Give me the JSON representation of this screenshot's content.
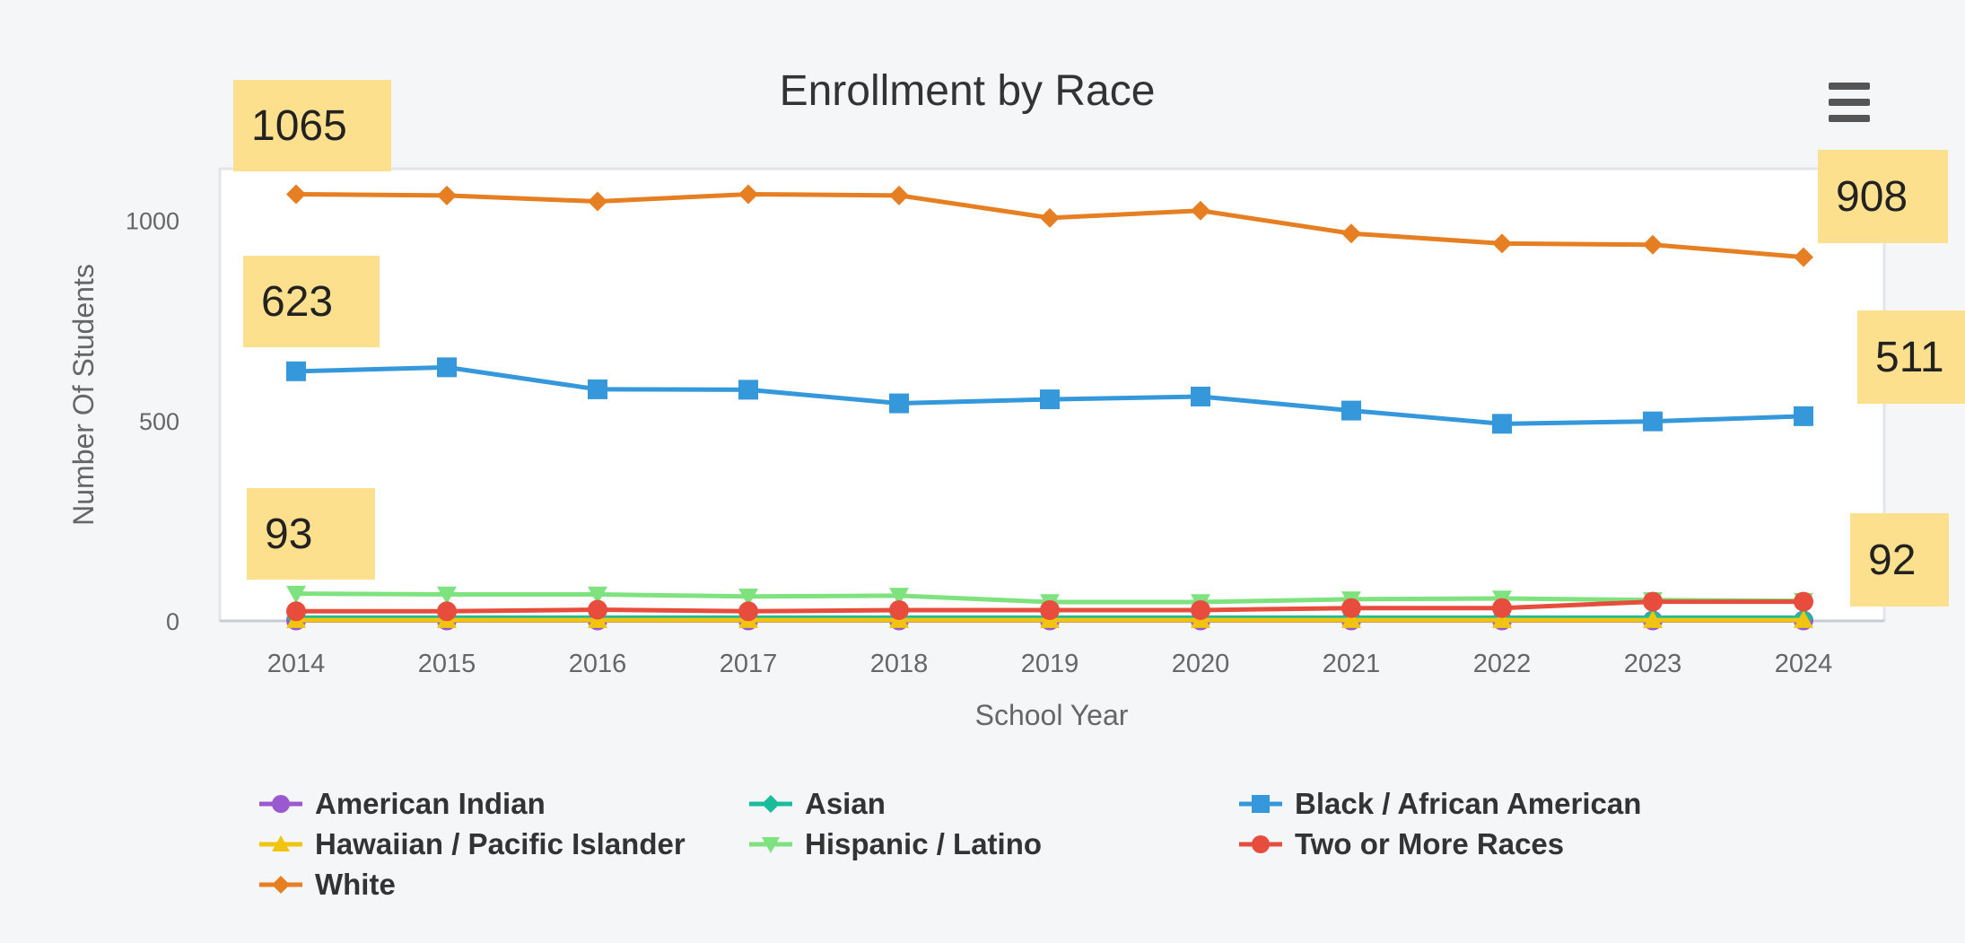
{
  "chart_data": {
    "type": "line",
    "title": "Enrollment by Race",
    "xlabel": "School Year",
    "ylabel": "Number Of Students",
    "x": [
      "2014",
      "2015",
      "2016",
      "2017",
      "2018",
      "2019",
      "2020",
      "2021",
      "2022",
      "2023",
      "2024"
    ],
    "ylim": [
      0,
      1120
    ],
    "yticks": [
      0,
      500,
      1000
    ],
    "grid": false,
    "legend": "bottom",
    "series": [
      {
        "name": "American Indian",
        "color": "#9b59d0",
        "marker": "circle",
        "values": [
          1,
          1,
          1,
          1,
          1,
          1,
          1,
          1,
          1,
          1,
          1
        ]
      },
      {
        "name": "Asian",
        "color": "#1abc9c",
        "marker": "diamond",
        "values": [
          8,
          8,
          8,
          8,
          8,
          8,
          8,
          8,
          8,
          8,
          8
        ]
      },
      {
        "name": "Black / African American",
        "color": "#3498db",
        "marker": "square",
        "values": [
          623,
          633,
          578,
          577,
          543,
          553,
          560,
          525,
          492,
          498,
          511
        ]
      },
      {
        "name": "Hawaiian / Pacific Islander",
        "color": "#f1c40f",
        "marker": "triangle",
        "values": [
          2,
          2,
          2,
          2,
          2,
          2,
          2,
          2,
          2,
          2,
          2
        ]
      },
      {
        "name": "Hispanic / Latino",
        "color": "#7ee27e",
        "marker": "triangle-down",
        "values": [
          68,
          66,
          66,
          61,
          63,
          47,
          47,
          54,
          56,
          52,
          50
        ]
      },
      {
        "name": "Two or More Races",
        "color": "#e74c3c",
        "marker": "circle",
        "values": [
          24,
          24,
          28,
          24,
          27,
          27,
          27,
          32,
          32,
          48,
          48
        ]
      },
      {
        "name": "White",
        "color": "#e67e22",
        "marker": "diamond",
        "values": [
          1065,
          1062,
          1047,
          1065,
          1062,
          1006,
          1024,
          967,
          942,
          939,
          908
        ]
      }
    ],
    "callouts": [
      {
        "label": "1065"
      },
      {
        "label": "623"
      },
      {
        "label": "93"
      },
      {
        "label": "908"
      },
      {
        "label": "511"
      },
      {
        "label": "92"
      }
    ]
  },
  "ui": {
    "menu_icon": "hamburger-menu-icon"
  }
}
